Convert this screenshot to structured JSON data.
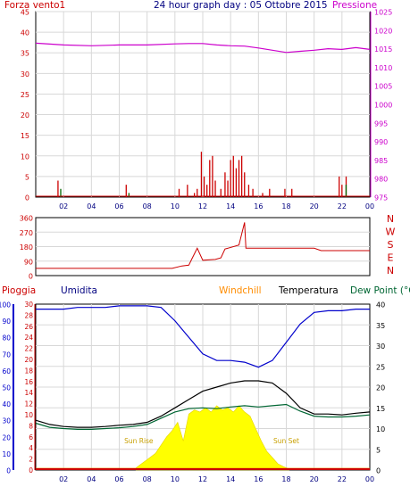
{
  "header": {
    "left": "Forza vento1",
    "title": "24 hour graph day : 05 Ottobre 2015",
    "right": "Pressione"
  },
  "bottom_header": {
    "rain": "Pioggia",
    "humidity": "Umidita",
    "windchill": "Windchill",
    "temperature": "Temperatura",
    "dewpoint": "Dew Point (°C"
  },
  "colors": {
    "wind": "#cc0000",
    "gust": "#006600",
    "pressure": "#cc00cc",
    "direction": "#cc0000",
    "humidity": "#0000cc",
    "temperature": "#000000",
    "dewpoint": "#006633",
    "windchill": "#ff8c00",
    "solar": "#ffff00",
    "rain": "#cc0000",
    "grid": "#d8d8d8",
    "axis_time": "#000080"
  },
  "chart_data": [
    {
      "type": "line",
      "name": "wind-pressure",
      "x": [
        0,
        2,
        4,
        6,
        8,
        10,
        11,
        12,
        13,
        14,
        15,
        16,
        17,
        18,
        19,
        20,
        21,
        22,
        23,
        24
      ],
      "xticks": [
        "02",
        "04",
        "06",
        "08",
        "10",
        "12",
        "14",
        "16",
        "18",
        "20",
        "22",
        "00"
      ],
      "left_axis": {
        "label": "Forza vento1",
        "ticks": [
          "0",
          "5",
          "10",
          "15",
          "20",
          "25",
          "30",
          "35",
          "40",
          "45"
        ],
        "ylim": [
          0,
          45
        ]
      },
      "right_axis": {
        "label": "Pressione",
        "ticks": [
          "975",
          "980",
          "985",
          "990",
          "995",
          "1000",
          "1005",
          "1010",
          "1015",
          "1020",
          "1025"
        ],
        "ylim": [
          975,
          1025
        ]
      },
      "series": [
        {
          "values": [
            1016.5,
            1016.0,
            1015.8,
            1016.0,
            1016.0,
            1016.3,
            1016.4,
            1016.4,
            1016.0,
            1015.8,
            1015.7,
            1015.2,
            1014.6,
            1014.0,
            1014.3,
            1014.6,
            1015.0,
            1014.8,
            1015.3,
            1014.8
          ]
        }
      ],
      "wind_bars": [
        {
          "x": 1.6,
          "v": 4
        },
        {
          "x": 6.5,
          "v": 3
        },
        {
          "x": 10.3,
          "v": 2
        },
        {
          "x": 10.9,
          "v": 3
        },
        {
          "x": 11.4,
          "v": 1
        },
        {
          "x": 11.6,
          "v": 2
        },
        {
          "x": 11.9,
          "v": 11
        },
        {
          "x": 12.1,
          "v": 5
        },
        {
          "x": 12.3,
          "v": 3
        },
        {
          "x": 12.5,
          "v": 9
        },
        {
          "x": 12.7,
          "v": 10
        },
        {
          "x": 12.9,
          "v": 4
        },
        {
          "x": 13.3,
          "v": 2
        },
        {
          "x": 13.6,
          "v": 6
        },
        {
          "x": 13.8,
          "v": 4
        },
        {
          "x": 14.0,
          "v": 9
        },
        {
          "x": 14.2,
          "v": 10
        },
        {
          "x": 14.4,
          "v": 7
        },
        {
          "x": 14.6,
          "v": 9
        },
        {
          "x": 14.8,
          "v": 10
        },
        {
          "x": 15.0,
          "v": 6
        },
        {
          "x": 15.3,
          "v": 3
        },
        {
          "x": 15.6,
          "v": 2
        },
        {
          "x": 16.3,
          "v": 1
        },
        {
          "x": 16.8,
          "v": 2
        },
        {
          "x": 17.9,
          "v": 2
        },
        {
          "x": 18.4,
          "v": 2
        },
        {
          "x": 21.8,
          "v": 5
        },
        {
          "x": 22.0,
          "v": 3
        },
        {
          "x": 22.3,
          "v": 5
        }
      ],
      "gust_bars": [
        {
          "x": 1.7,
          "v": 2
        },
        {
          "x": 6.6,
          "v": 1
        },
        {
          "x": 22.2,
          "v": 3
        }
      ]
    },
    {
      "type": "line",
      "name": "wind-direction",
      "x": [
        0,
        9.8,
        10.5,
        11.0,
        11.2,
        11.6,
        12.0,
        12.9,
        13.3,
        13.6,
        14.6,
        15.0,
        15.1,
        15.5,
        15.7,
        20.0,
        20.5,
        24.0
      ],
      "yticks": [
        "0",
        "90",
        "180",
        "270",
        "360"
      ],
      "ylim": [
        0,
        360
      ],
      "compass": [
        "N",
        "W",
        "S",
        "E",
        "N"
      ],
      "series": [
        {
          "values": [
            45,
            45,
            60,
            65,
            100,
            170,
            95,
            100,
            110,
            165,
            190,
            330,
            170,
            170,
            170,
            170,
            155,
            155
          ]
        }
      ]
    },
    {
      "type": "line",
      "name": "temperature-humidity",
      "x": [
        0,
        1,
        2,
        3,
        4,
        5,
        6,
        7,
        8,
        9,
        10,
        11,
        12,
        13,
        14,
        15,
        16,
        17,
        18,
        19,
        20,
        21,
        22,
        23,
        24
      ],
      "xticks": [
        "02",
        "04",
        "06",
        "08",
        "10",
        "12",
        "14",
        "16",
        "18",
        "20",
        "22",
        "00"
      ],
      "left_axis": {
        "humidity_ticks": [
          "0",
          "10",
          "20",
          "30",
          "40",
          "50",
          "60",
          "70",
          "80",
          "90",
          "100"
        ],
        "rain_ticks": [
          "0",
          "2",
          "4",
          "6",
          "8",
          "10",
          "12",
          "14",
          "16",
          "18",
          "20",
          "22",
          "24",
          "26",
          "28",
          "30"
        ]
      },
      "right_axis": {
        "ticks": [
          "0",
          "5",
          "10",
          "15",
          "20",
          "25",
          "30",
          "35",
          "40"
        ],
        "ylim": [
          0,
          40
        ]
      },
      "series": [
        {
          "name": "Temperatura",
          "color": "#000000",
          "values": [
            12.0,
            11.0,
            10.5,
            10.3,
            10.3,
            10.5,
            10.8,
            11.0,
            11.5,
            13.0,
            15.0,
            17.0,
            19.0,
            20.0,
            21.0,
            21.5,
            21.5,
            21.0,
            18.5,
            15.0,
            13.5,
            13.5,
            13.3,
            13.7,
            14.0
          ]
        },
        {
          "name": "Dew Point",
          "color": "#006633",
          "values": [
            11.3,
            10.3,
            10.0,
            9.8,
            9.8,
            10.0,
            10.2,
            10.5,
            11.0,
            12.5,
            14.0,
            14.8,
            15.0,
            14.8,
            15.2,
            15.5,
            15.2,
            15.5,
            15.8,
            14.2,
            13.0,
            12.8,
            12.8,
            13.0,
            13.3
          ]
        },
        {
          "name": "Umidita",
          "color": "#0000cc",
          "values": [
            97,
            97,
            97,
            98,
            98,
            98,
            99,
            99,
            99,
            98,
            90,
            80,
            70,
            66,
            66,
            65,
            62,
            66,
            77,
            88,
            95,
            96,
            96,
            97,
            97
          ]
        },
        {
          "name": "Windchill",
          "color": "#ff8c00",
          "values": [
            0.3,
            0.3,
            0.3,
            0.3,
            0.3,
            0.3,
            0.3,
            0.3,
            0.3,
            0.3,
            0.3,
            0.3,
            0.3,
            0.3,
            0.3,
            0.3,
            0.3,
            0.3,
            0.3,
            0.3,
            0.3,
            0.3,
            0.3,
            0.3,
            0.3
          ]
        }
      ],
      "solar": {
        "x": [
          7.2,
          7.6,
          8.0,
          8.6,
          9.0,
          9.4,
          9.8,
          10.2,
          10.6,
          11.0,
          11.4,
          11.8,
          12.2,
          12.6,
          13.0,
          13.4,
          13.8,
          14.2,
          14.6,
          15.0,
          15.4,
          15.8,
          16.2,
          16.6,
          17.0,
          17.4,
          17.8,
          18.2
        ],
        "values": [
          0.5,
          1.5,
          2.5,
          4.0,
          6.0,
          8.0,
          9.5,
          11.5,
          7.0,
          13.5,
          14.5,
          14.0,
          15.0,
          14.0,
          15.5,
          14.5,
          15.0,
          14.0,
          15.5,
          14.0,
          13.0,
          10.0,
          7.0,
          4.5,
          3.0,
          1.5,
          0.8,
          0.3
        ]
      },
      "annotations": [
        {
          "text": "Sun Rise",
          "x": 7.4
        },
        {
          "text": "Sun Set",
          "x": 18.0
        }
      ]
    }
  ]
}
